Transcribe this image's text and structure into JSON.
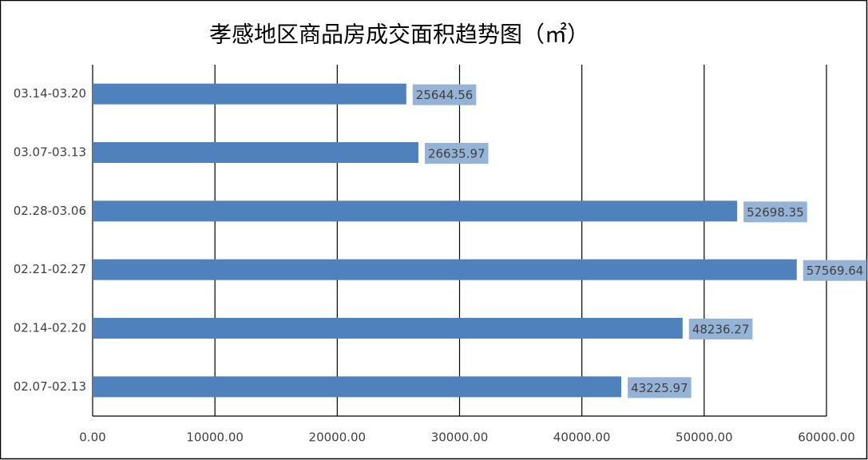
{
  "chart_data": {
    "type": "hbar",
    "title": "孝感地区商品房成交面积趋势图（㎡）",
    "categories": [
      "03.14-03.20",
      "03.07-03.13",
      "02.28-03.06",
      "02.21-02.27",
      "02.14-02.20",
      "02.07-02.13"
    ],
    "values": [
      25644.56,
      26635.97,
      52698.35,
      57569.64,
      48236.27,
      43225.97
    ],
    "color": "#4f81bd",
    "label_color": "#95b3d7",
    "xlim": [
      0,
      60000
    ],
    "xticks": [
      {
        "value": 0,
        "label": "0.00"
      },
      {
        "value": 10000,
        "label": "10000.00"
      },
      {
        "value": 20000,
        "label": "20000.00"
      },
      {
        "value": 30000,
        "label": "30000.00"
      },
      {
        "value": 40000,
        "label": "40000.00"
      },
      {
        "value": 50000,
        "label": "50000.00"
      },
      {
        "value": 60000,
        "label": "60000.00"
      }
    ],
    "grid": true
  }
}
